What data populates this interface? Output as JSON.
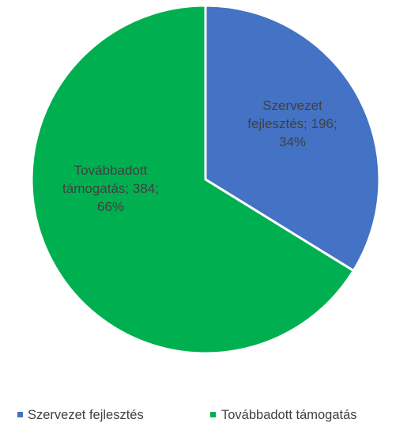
{
  "chart_data": {
    "type": "pie",
    "title": "",
    "categories": [
      "Szervezet fejlesztés",
      "Továbbadott támogatás"
    ],
    "values": [
      196,
      384
    ],
    "percentages": [
      "34%",
      "66%"
    ],
    "colors": [
      "#4472c4",
      "#00b050"
    ],
    "data_labels": [
      [
        "Szervezet",
        "fejlesztés; 196;",
        "34%"
      ],
      [
        "Továbbadott",
        "támogatás; 384;",
        "66%"
      ]
    ],
    "legend": {
      "position": "bottom",
      "items": [
        {
          "label": "Szervezet fejlesztés",
          "color": "#4472c4"
        },
        {
          "label": "Továbbadott támogatás",
          "color": "#00b050"
        }
      ]
    }
  }
}
